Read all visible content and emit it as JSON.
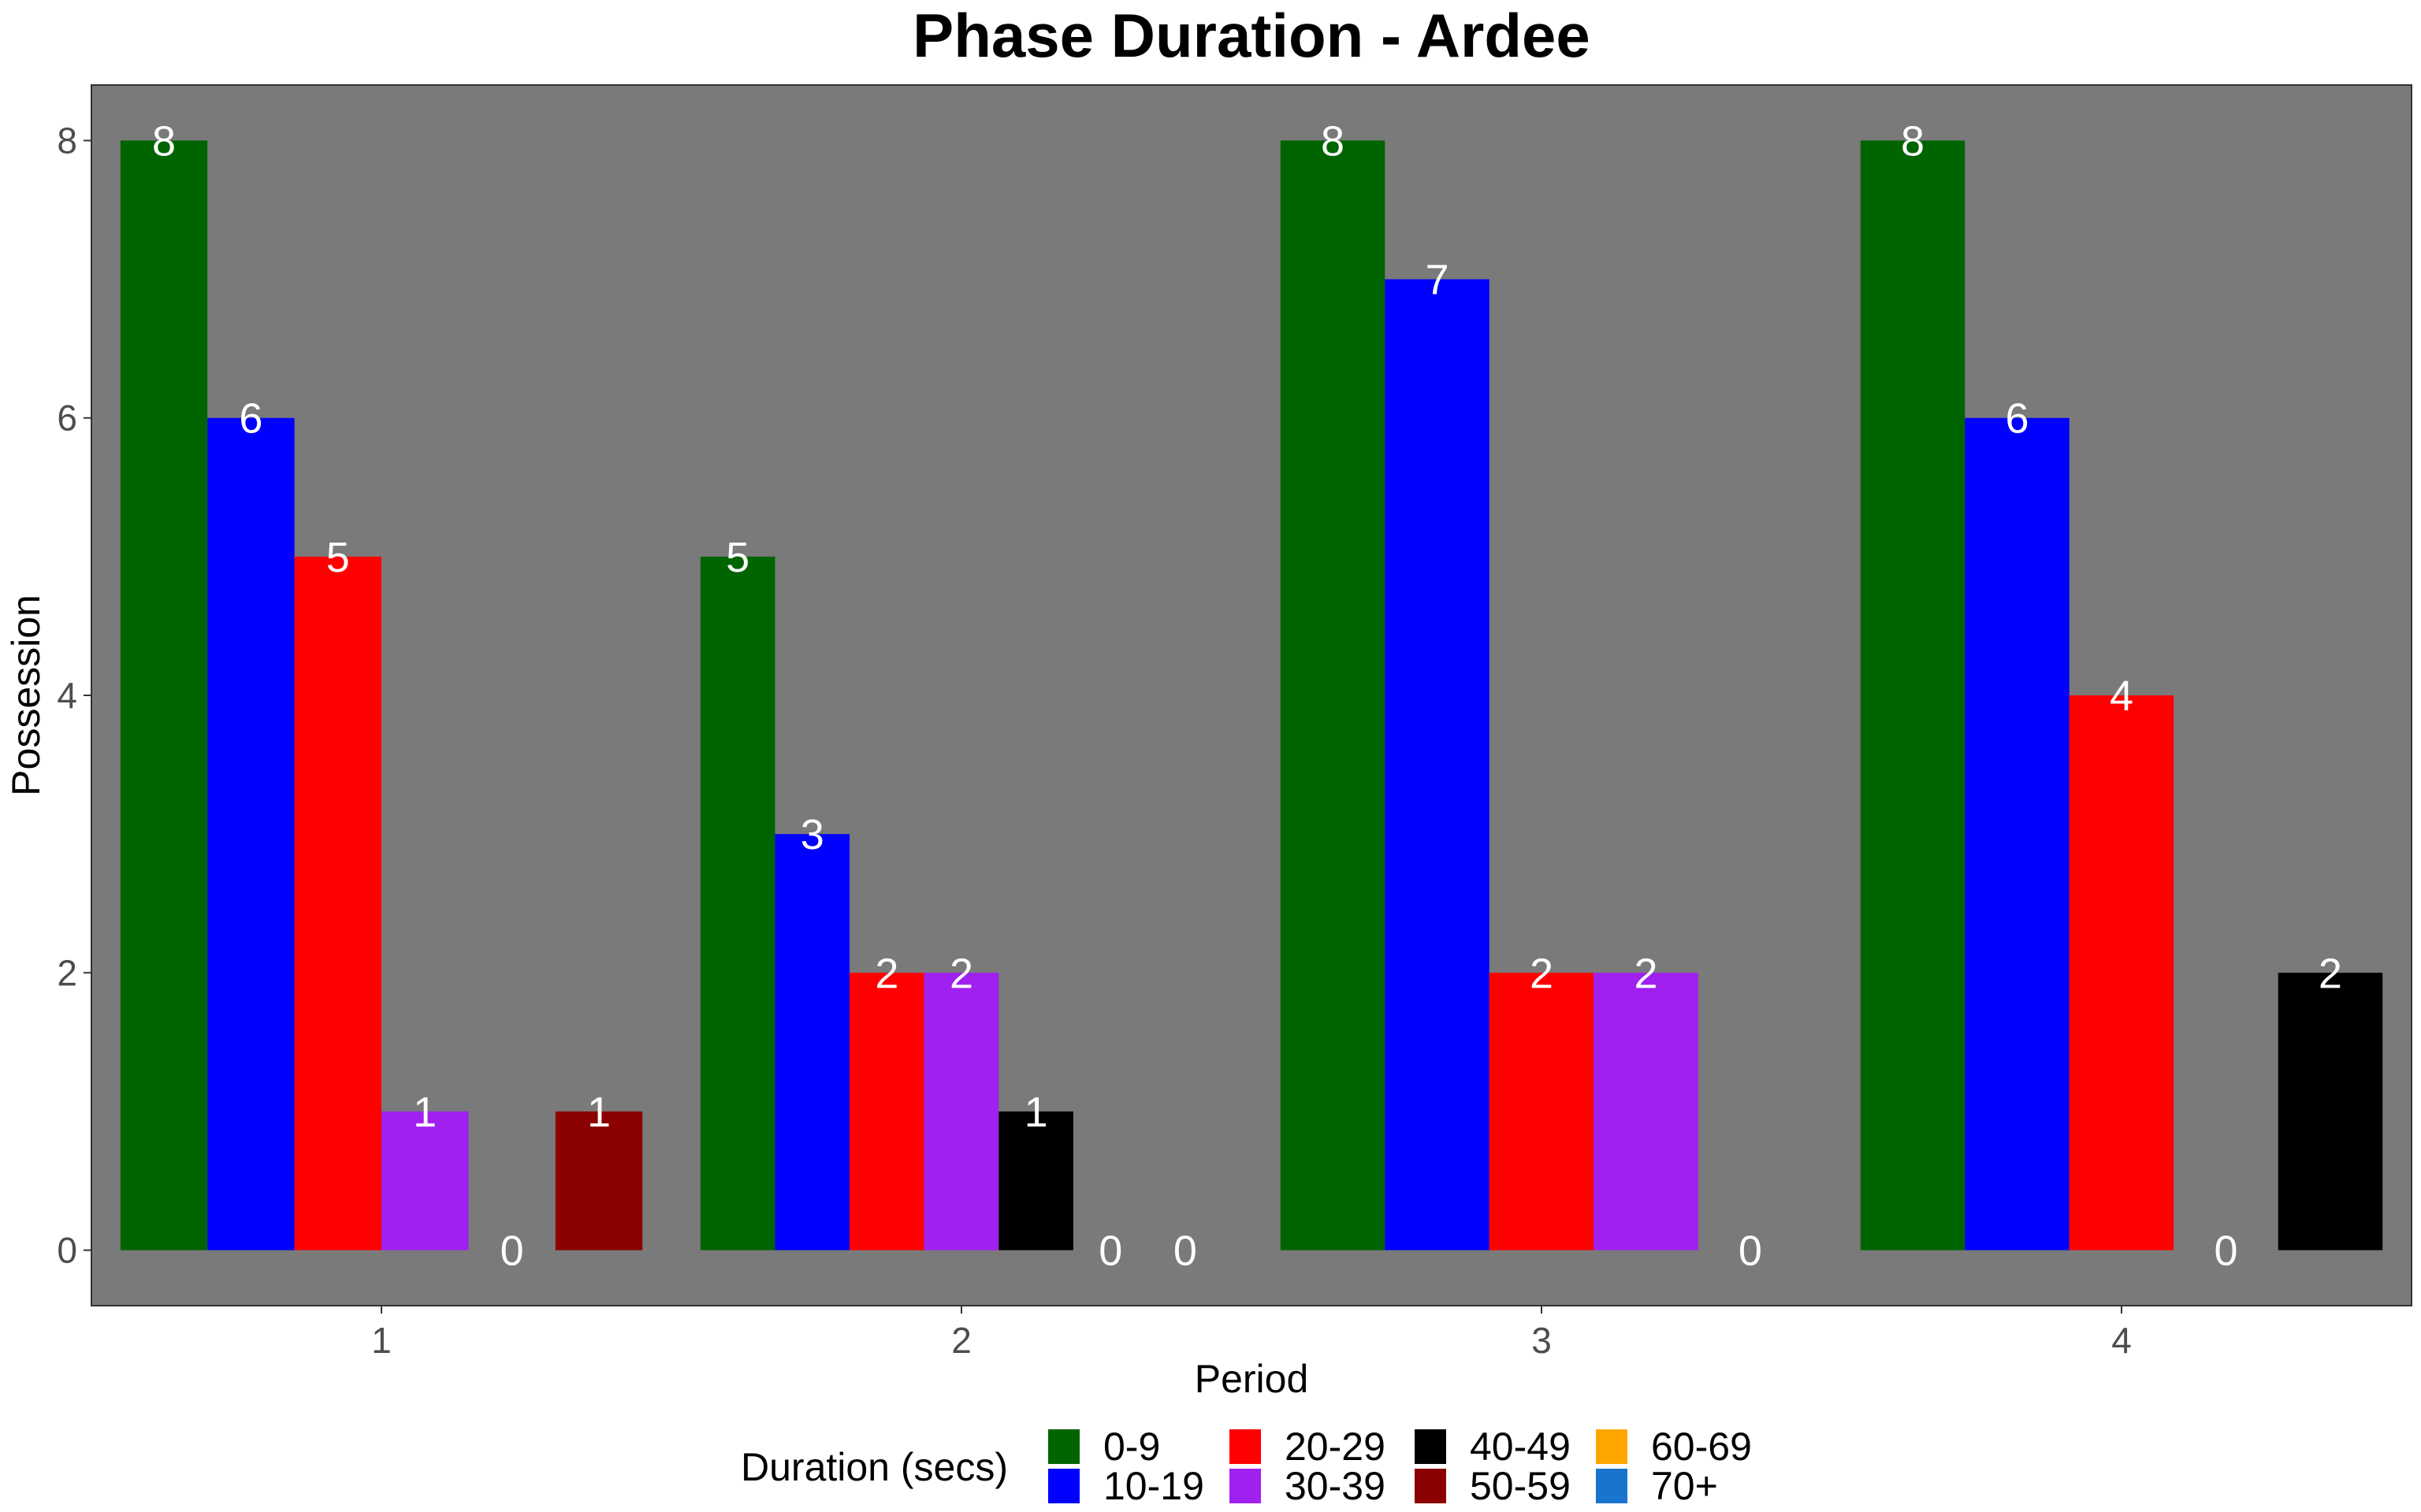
{
  "chart_data": {
    "type": "bar",
    "title": "Phase Duration - Ardee",
    "xlabel": "Period",
    "ylabel": "Possession",
    "categories": [
      "1",
      "2",
      "3",
      "4"
    ],
    "ylim": [
      -0.4,
      8.4
    ],
    "yticks": [
      0,
      2,
      4,
      6,
      8
    ],
    "grid": false,
    "panel_background": "#7a7a7a",
    "legend": {
      "title": "Duration (secs)",
      "position": "bottom",
      "entries": [
        {
          "label": "0-9",
          "color": "#006400"
        },
        {
          "label": "10-19",
          "color": "#0000ff"
        },
        {
          "label": "20-29",
          "color": "#ff0000"
        },
        {
          "label": "30-39",
          "color": "#a020f0"
        },
        {
          "label": "40-49",
          "color": "#000000"
        },
        {
          "label": "50-59",
          "color": "#8b0000"
        },
        {
          "label": "60-69",
          "color": "#ffa500"
        },
        {
          "label": "70+",
          "color": "#1874cd"
        }
      ]
    },
    "groups": [
      {
        "period": "1",
        "bars": [
          {
            "duration": "0-9",
            "value": 8
          },
          {
            "duration": "10-19",
            "value": 6
          },
          {
            "duration": "20-29",
            "value": 5
          },
          {
            "duration": "30-39",
            "value": 1
          },
          {
            "duration": "40-49",
            "value": 0
          },
          {
            "duration": "50-59",
            "value": 1
          }
        ]
      },
      {
        "period": "2",
        "bars": [
          {
            "duration": "0-9",
            "value": 5
          },
          {
            "duration": "10-19",
            "value": 3
          },
          {
            "duration": "20-29",
            "value": 2
          },
          {
            "duration": "30-39",
            "value": 2
          },
          {
            "duration": "40-49",
            "value": 1
          },
          {
            "duration": "50-59",
            "value": 0
          },
          {
            "duration": "60-69",
            "value": 0
          }
        ]
      },
      {
        "period": "3",
        "bars": [
          {
            "duration": "0-9",
            "value": 8
          },
          {
            "duration": "10-19",
            "value": 7
          },
          {
            "duration": "20-29",
            "value": 2
          },
          {
            "duration": "30-39",
            "value": 2
          },
          {
            "duration": "40-49",
            "value": 0
          }
        ]
      },
      {
        "period": "4",
        "bars": [
          {
            "duration": "0-9",
            "value": 8
          },
          {
            "duration": "10-19",
            "value": 6
          },
          {
            "duration": "20-29",
            "value": 4
          },
          {
            "duration": "30-39",
            "value": 0
          },
          {
            "duration": "40-49",
            "value": 2
          }
        ]
      }
    ]
  }
}
